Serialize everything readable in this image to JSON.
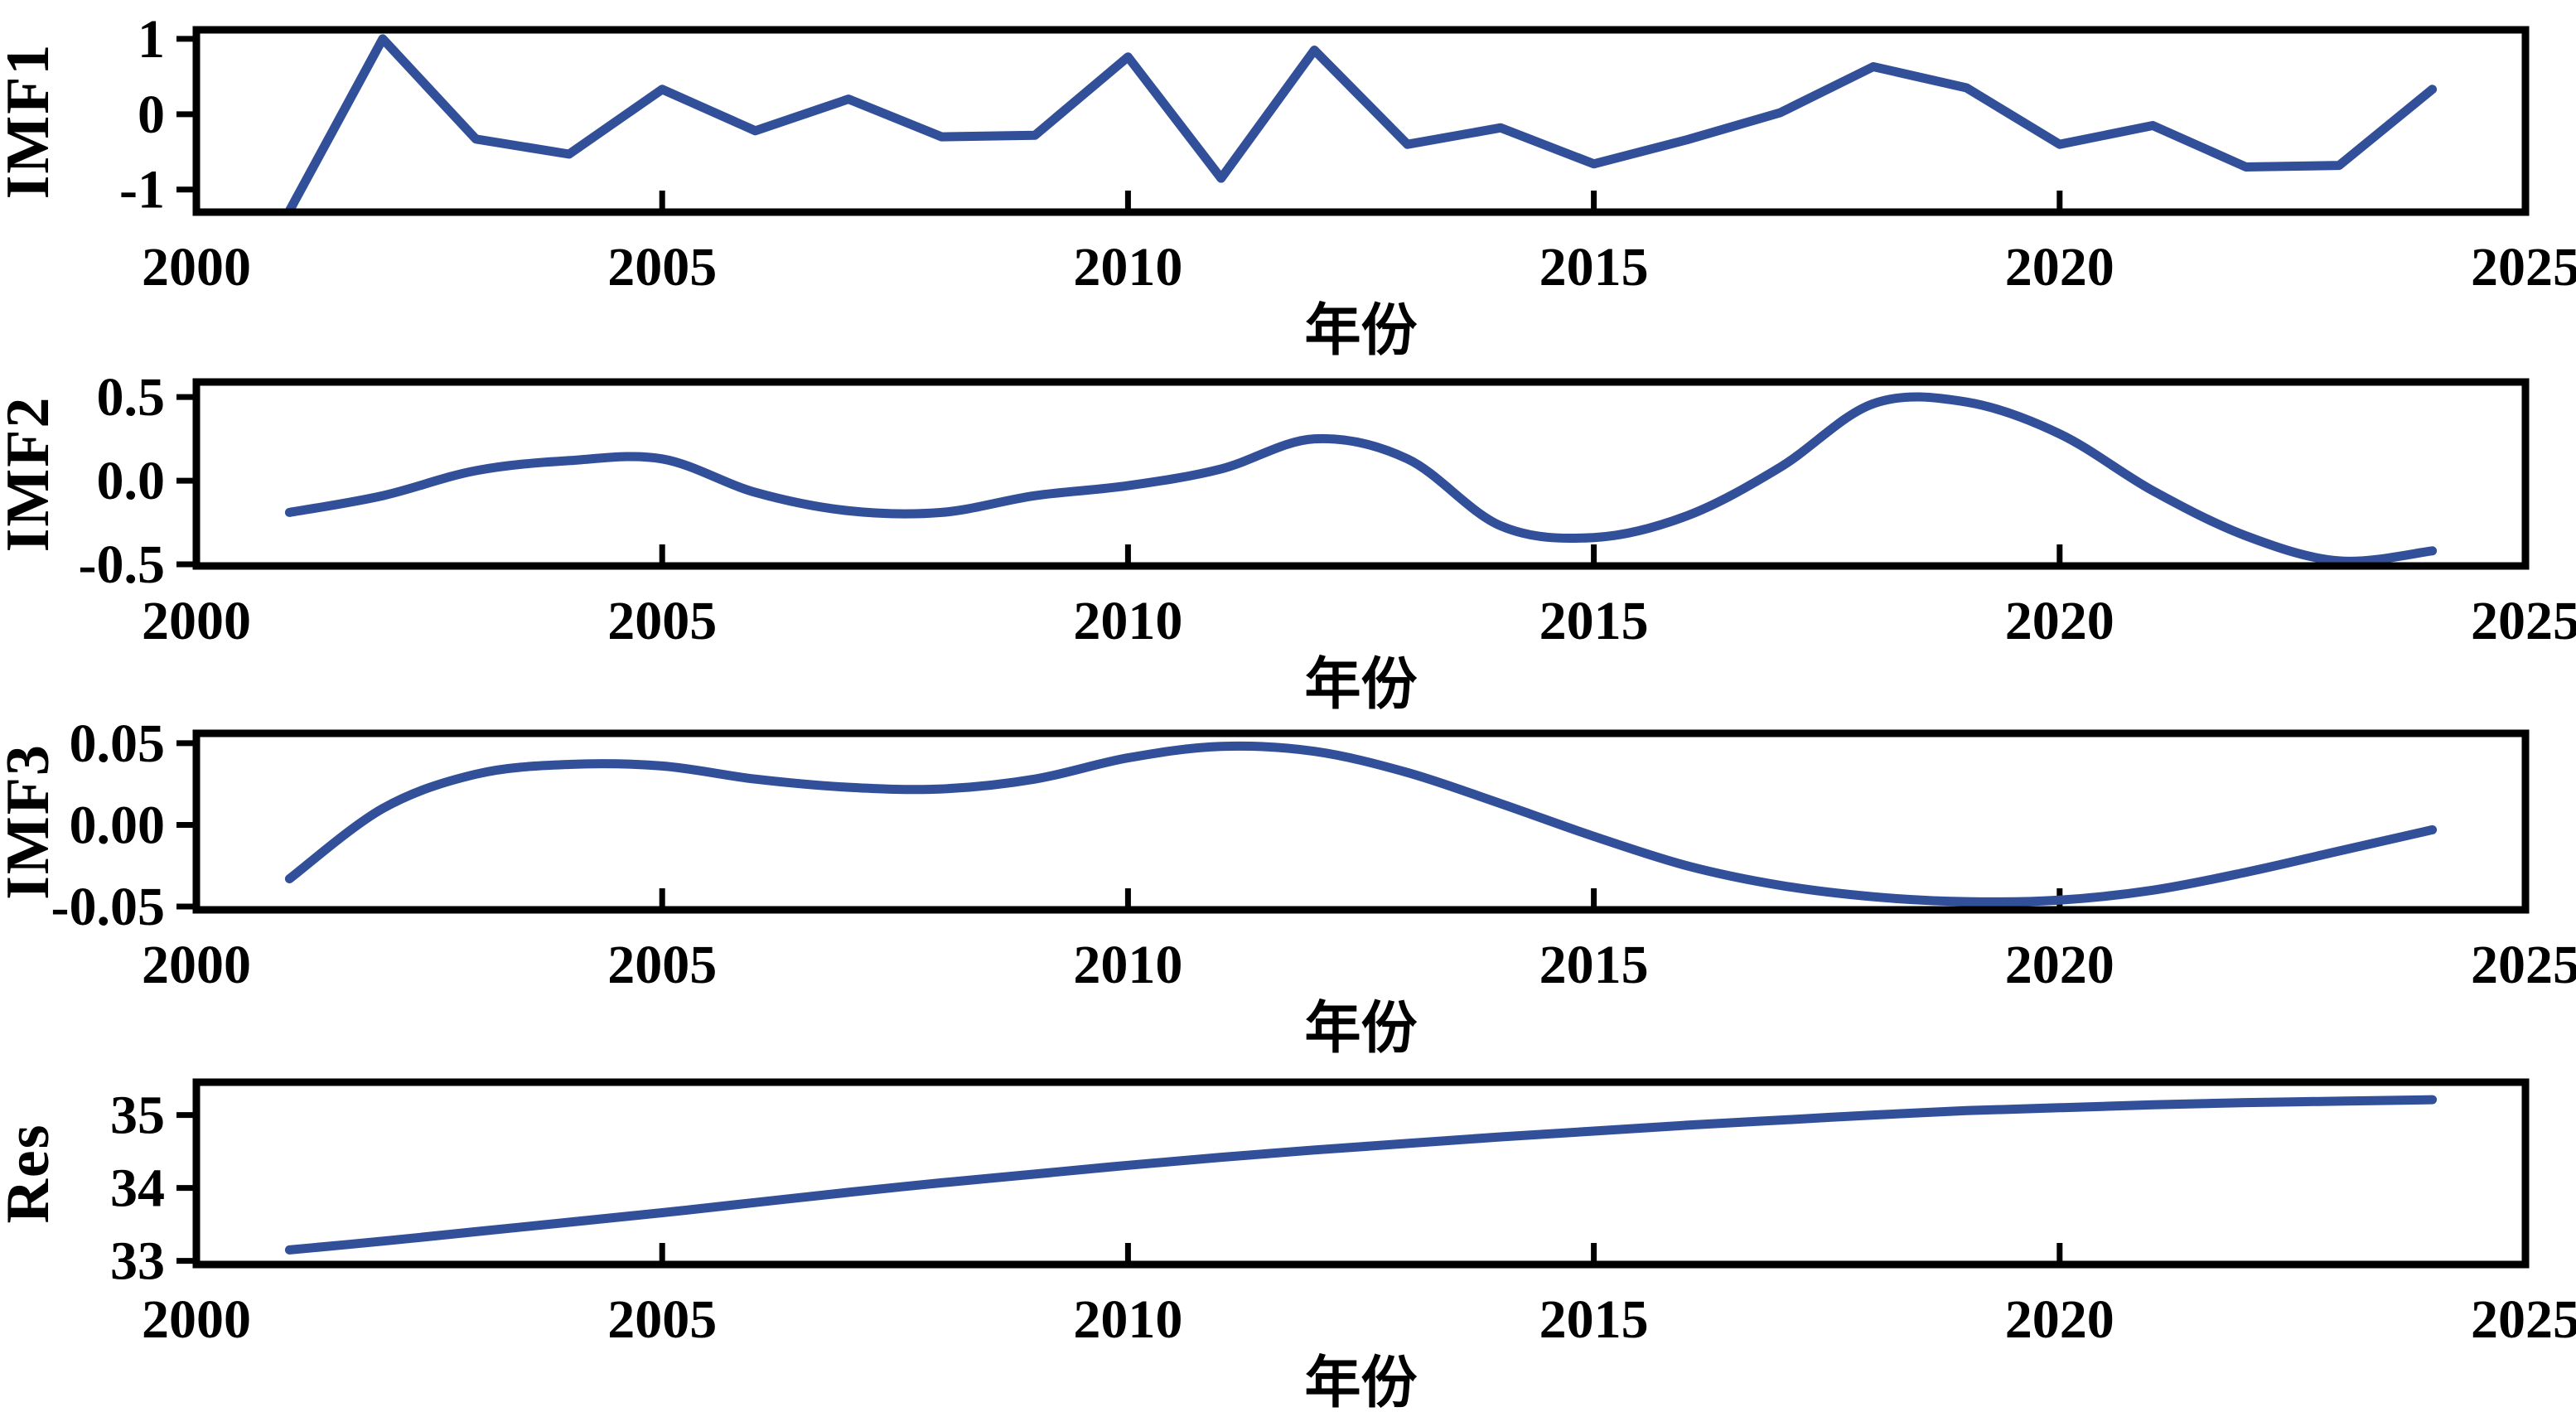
{
  "figure": {
    "kind": "EMD decomposition stacked line panels",
    "background_color": "#ffffff",
    "axis_color": "#000000",
    "line_color": "#324F99",
    "x_axis_label": "年份",
    "x_tick_labels": [
      "2000",
      "2005",
      "2010",
      "2015",
      "2020",
      "2025"
    ],
    "x_tick_values": [
      2000,
      2005,
      2010,
      2015,
      2020,
      2025
    ],
    "xlim": [
      2000,
      2025
    ],
    "grid": "off",
    "legend": "none",
    "panel_names": [
      "IMF1",
      "IMF2",
      "IMF3",
      "Res"
    ]
  },
  "chart_data": [
    {
      "type": "line",
      "name": "IMF1",
      "ylabel": "IMF1",
      "xlabel": "年份",
      "smooth": false,
      "xlim": [
        2000,
        2025
      ],
      "ylim": [
        -1.3,
        1.12
      ],
      "yticks": [
        {
          "v": 1,
          "label": "1"
        },
        {
          "v": 0,
          "label": "0"
        },
        {
          "v": -1,
          "label": "-1"
        }
      ],
      "xticks": [
        2000,
        2005,
        2010,
        2015,
        2020,
        2025
      ],
      "xtick_labels": [
        "2000",
        "2005",
        "2010",
        "2015",
        "2020",
        "2025"
      ],
      "x": [
        2001,
        2002,
        2003,
        2004,
        2005,
        2006,
        2007,
        2008,
        2009,
        2010,
        2011,
        2012,
        2013,
        2014,
        2015,
        2016,
        2017,
        2018,
        2019,
        2020,
        2021,
        2022,
        2023,
        2024
      ],
      "values": [
        -1.28,
        1.0,
        -0.33,
        -0.53,
        0.33,
        -0.22,
        0.2,
        -0.3,
        -0.28,
        0.76,
        -0.85,
        0.85,
        -0.4,
        -0.18,
        -0.66,
        -0.34,
        0.02,
        0.63,
        0.35,
        -0.4,
        -0.15,
        -0.7,
        -0.68,
        0.33
      ]
    },
    {
      "type": "line",
      "name": "IMF2",
      "ylabel": "IMF2",
      "xlabel": "年份",
      "smooth": true,
      "xlim": [
        2000,
        2025
      ],
      "ylim": [
        -0.51,
        0.59
      ],
      "yticks": [
        {
          "v": 0.5,
          "label": "0.5"
        },
        {
          "v": 0.0,
          "label": "0.0"
        },
        {
          "v": -0.5,
          "label": "-0.5"
        }
      ],
      "xticks": [
        2000,
        2005,
        2010,
        2015,
        2020,
        2025
      ],
      "xtick_labels": [
        "2000",
        "2005",
        "2010",
        "2015",
        "2020",
        "2025"
      ],
      "x": [
        2001,
        2002,
        2003,
        2004,
        2005,
        2006,
        2007,
        2008,
        2009,
        2010,
        2011,
        2012,
        2013,
        2014,
        2015,
        2016,
        2017,
        2018,
        2019,
        2020,
        2021,
        2022,
        2023,
        2024
      ],
      "values": [
        -0.19,
        -0.09,
        0.06,
        0.12,
        0.13,
        -0.07,
        -0.18,
        -0.19,
        -0.09,
        -0.03,
        0.07,
        0.25,
        0.13,
        -0.27,
        -0.34,
        -0.21,
        0.08,
        0.46,
        0.47,
        0.28,
        -0.06,
        -0.33,
        -0.48,
        -0.42
      ]
    },
    {
      "type": "line",
      "name": "IMF3",
      "ylabel": "IMF3",
      "xlabel": "年份",
      "smooth": true,
      "xlim": [
        2000,
        2025
      ],
      "ylim": [
        -0.052,
        0.056
      ],
      "yticks": [
        {
          "v": 0.05,
          "label": "0.05"
        },
        {
          "v": 0.0,
          "label": "0.00"
        },
        {
          "v": -0.05,
          "label": "-0.05"
        }
      ],
      "xticks": [
        2000,
        2005,
        2010,
        2015,
        2020,
        2025
      ],
      "xtick_labels": [
        "2000",
        "2005",
        "2010",
        "2015",
        "2020",
        "2025"
      ],
      "x": [
        2001,
        2002,
        2003,
        2004,
        2005,
        2006,
        2007,
        2008,
        2009,
        2010,
        2011,
        2012,
        2013,
        2014,
        2015,
        2016,
        2017,
        2018,
        2019,
        2020,
        2021,
        2022,
        2023,
        2024
      ],
      "values": [
        -0.033,
        0.01,
        0.031,
        0.037,
        0.036,
        0.028,
        0.023,
        0.022,
        0.028,
        0.041,
        0.048,
        0.045,
        0.032,
        0.013,
        -0.007,
        -0.025,
        -0.037,
        -0.044,
        -0.047,
        -0.046,
        -0.04,
        -0.029,
        -0.016,
        -0.003
      ]
    },
    {
      "type": "line",
      "name": "Res",
      "ylabel": "Res",
      "xlabel": "年份",
      "smooth": true,
      "xlim": [
        2000,
        2025
      ],
      "ylim": [
        32.95,
        35.45
      ],
      "yticks": [
        {
          "v": 35,
          "label": "35"
        },
        {
          "v": 34,
          "label": "34"
        },
        {
          "v": 33,
          "label": "33"
        }
      ],
      "xticks": [
        2000,
        2005,
        2010,
        2015,
        2020,
        2025
      ],
      "xtick_labels": [
        "2000",
        "2005",
        "2010",
        "2015",
        "2020",
        "2025"
      ],
      "x": [
        2001,
        2002,
        2003,
        2004,
        2005,
        2006,
        2007,
        2008,
        2009,
        2010,
        2011,
        2012,
        2013,
        2014,
        2015,
        2016,
        2017,
        2018,
        2019,
        2020,
        2021,
        2022,
        2023,
        2024
      ],
      "values": [
        33.15,
        33.27,
        33.4,
        33.53,
        33.66,
        33.8,
        33.94,
        34.07,
        34.19,
        34.31,
        34.42,
        34.52,
        34.61,
        34.7,
        34.78,
        34.86,
        34.93,
        35.0,
        35.06,
        35.1,
        35.14,
        35.17,
        35.19,
        35.21
      ]
    }
  ]
}
